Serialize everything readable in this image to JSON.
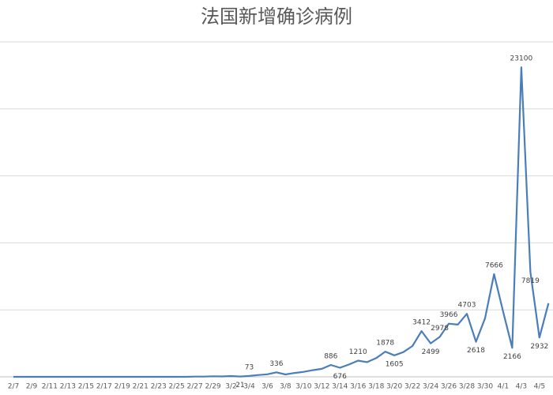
{
  "chart_data": {
    "type": "line",
    "title": "法国新增确诊病例",
    "categories": [
      "2/7",
      null,
      "2/9",
      null,
      "2/11",
      null,
      "2/13",
      null,
      "2/15",
      null,
      "2/17",
      null,
      "2/19",
      null,
      "2/21",
      null,
      "2/23",
      null,
      "2/25",
      null,
      "2/27",
      null,
      "2/29",
      null,
      "3/2",
      null,
      "3/4",
      null,
      "3/6",
      null,
      "3/8",
      null,
      "3/10",
      null,
      "3/12",
      null,
      "3/14",
      null,
      "3/16",
      null,
      "3/18",
      null,
      "3/20",
      null,
      "3/22",
      null,
      "3/24",
      null,
      "3/26",
      null,
      "3/28",
      null,
      "3/30",
      null,
      "4/1",
      null,
      "4/3",
      null,
      "4/5",
      null
    ],
    "series": [
      {
        "color": "#4a7ebb",
        "values": [
          0,
          0,
          0,
          0,
          0,
          0,
          0,
          0,
          0,
          0,
          0,
          0,
          0,
          0,
          0,
          0,
          0,
          0,
          2,
          2,
          20,
          19,
          43,
          30,
          61,
          21,
          73,
          138,
          190,
          336,
          177,
          286,
          372,
          497,
          595,
          886,
          676,
          920,
          1210,
          1097,
          1400,
          1878,
          1605,
          1847,
          2300,
          3412,
          2499,
          2978,
          3966,
          3900,
          4703,
          2618,
          4376,
          7666,
          4861,
          2166,
          23100,
          7819,
          2932,
          5497
        ],
        "value_labels": [
          null,
          null,
          null,
          null,
          null,
          null,
          null,
          null,
          null,
          null,
          null,
          null,
          null,
          null,
          null,
          null,
          null,
          null,
          null,
          null,
          null,
          null,
          null,
          null,
          null,
          "21",
          "73",
          null,
          null,
          "336",
          null,
          null,
          null,
          null,
          null,
          "886",
          "676",
          null,
          "1210",
          null,
          null,
          "1878",
          "1605",
          null,
          null,
          "3412",
          "2499",
          "2978",
          "3966",
          null,
          "4703",
          "2618",
          null,
          "7666",
          null,
          "2166",
          "23100",
          "7819",
          "2932",
          null
        ]
      }
    ],
    "ylim": [
      0,
      25000
    ],
    "yticks": [
      0,
      5000,
      10000,
      15000,
      20000,
      25000
    ],
    "grid": true
  }
}
